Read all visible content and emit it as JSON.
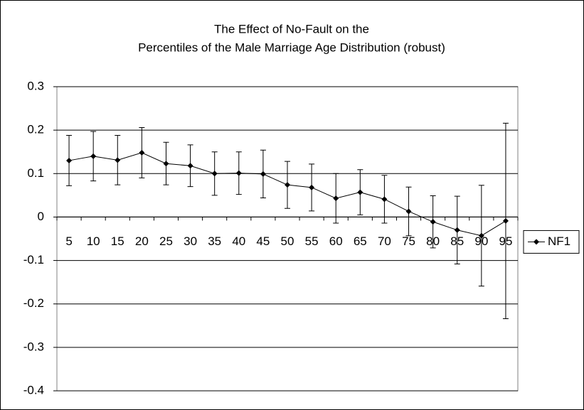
{
  "chart_data": {
    "type": "line",
    "title": [
      "The Effect of No-Fault on the",
      "Percentiles of the Male Marriage Age Distribution (robust)"
    ],
    "categories": [
      "5",
      "10",
      "15",
      "20",
      "25",
      "30",
      "35",
      "40",
      "45",
      "50",
      "55",
      "60",
      "65",
      "70",
      "75",
      "80",
      "85",
      "90",
      "95"
    ],
    "series": [
      {
        "name": "NF1",
        "color": "#000000",
        "values": [
          0.13,
          0.14,
          0.131,
          0.148,
          0.123,
          0.118,
          0.1,
          0.101,
          0.099,
          0.074,
          0.068,
          0.043,
          0.057,
          0.041,
          0.013,
          -0.011,
          -0.03,
          -0.043,
          -0.009
        ],
        "errors": [
          0.058,
          0.057,
          0.057,
          0.058,
          0.049,
          0.048,
          0.05,
          0.049,
          0.055,
          0.054,
          0.054,
          0.057,
          0.052,
          0.055,
          0.056,
          0.06,
          0.078,
          0.116,
          0.225
        ]
      }
    ],
    "ylim": [
      -0.4,
      0.3
    ],
    "yticks": [
      -0.4,
      -0.3,
      -0.2,
      -0.1,
      0,
      0.1,
      0.2,
      0.3
    ],
    "grid": true,
    "legend": "right"
  }
}
